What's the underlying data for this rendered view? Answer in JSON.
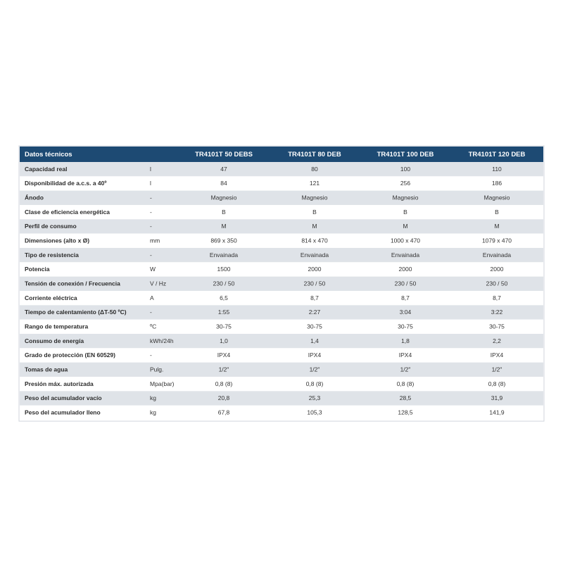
{
  "table": {
    "header": [
      "Datos técnicos",
      "",
      "TR4101T 50 DEBS",
      "TR4101T 80 DEB",
      "TR4101T 100 DEB",
      "TR4101T 120 DEB"
    ],
    "rows": [
      [
        "Capacidad real",
        "l",
        "47",
        "80",
        "100",
        "110"
      ],
      [
        "Disponibilidad de a.c.s. a 40º",
        "l",
        "84",
        "121",
        "256",
        "186"
      ],
      [
        "Ánodo",
        "-",
        "Magnesio",
        "Magnesio",
        "Magnesio",
        "Magnesio"
      ],
      [
        "Clase de eficiencia energética",
        "-",
        "B",
        "B",
        "B",
        "B"
      ],
      [
        "Perfil de consumo",
        "-",
        "M",
        "M",
        "M",
        "M"
      ],
      [
        "Dimensiones (alto x Ø)",
        "mm",
        "869 x 350",
        "814 x 470",
        "1000 x 470",
        "1079 x 470"
      ],
      [
        "Tipo de resistencia",
        "-",
        "Envainada",
        "Envainada",
        "Envainada",
        "Envainada"
      ],
      [
        "Potencia",
        "W",
        "1500",
        "2000",
        "2000",
        "2000"
      ],
      [
        "Tensión de conexión / Frecuencia",
        "V / Hz",
        "230 / 50",
        "230 / 50",
        "230 / 50",
        "230 / 50"
      ],
      [
        "Corriente eléctrica",
        "A",
        "6,5",
        "8,7",
        "8,7",
        "8,7"
      ],
      [
        "Tiempo de calentamiento (ΔT-50 ºC)",
        "-",
        "1:55",
        "2:27",
        "3:04",
        "3:22"
      ],
      [
        "Rango de temperatura",
        "ºC",
        "30-75",
        "30-75",
        "30-75",
        "30-75"
      ],
      [
        "Consumo de energía",
        "kWh/24h",
        "1,0",
        "1,4",
        "1,8",
        "2,2"
      ],
      [
        "Grado de protección (EN 60529)",
        "-",
        "IPX4",
        "IPX4",
        "IPX4",
        "IPX4"
      ],
      [
        "Tomas de agua",
        "Pulg.",
        "1/2\"",
        "1/2\"",
        "1/2\"",
        "1/2\""
      ],
      [
        "Presión máx. autorizada",
        "Mpa(bar)",
        "0,8 (8)",
        "0,8 (8)",
        "0,8 (8)",
        "0,8 (8)"
      ],
      [
        "Peso del acumulador vacío",
        "kg",
        "20,8",
        "25,3",
        "28,5",
        "31,9"
      ],
      [
        "Peso del acumulador lleno",
        "kg",
        "67,8",
        "105,3",
        "128,5",
        "141,9"
      ]
    ]
  }
}
